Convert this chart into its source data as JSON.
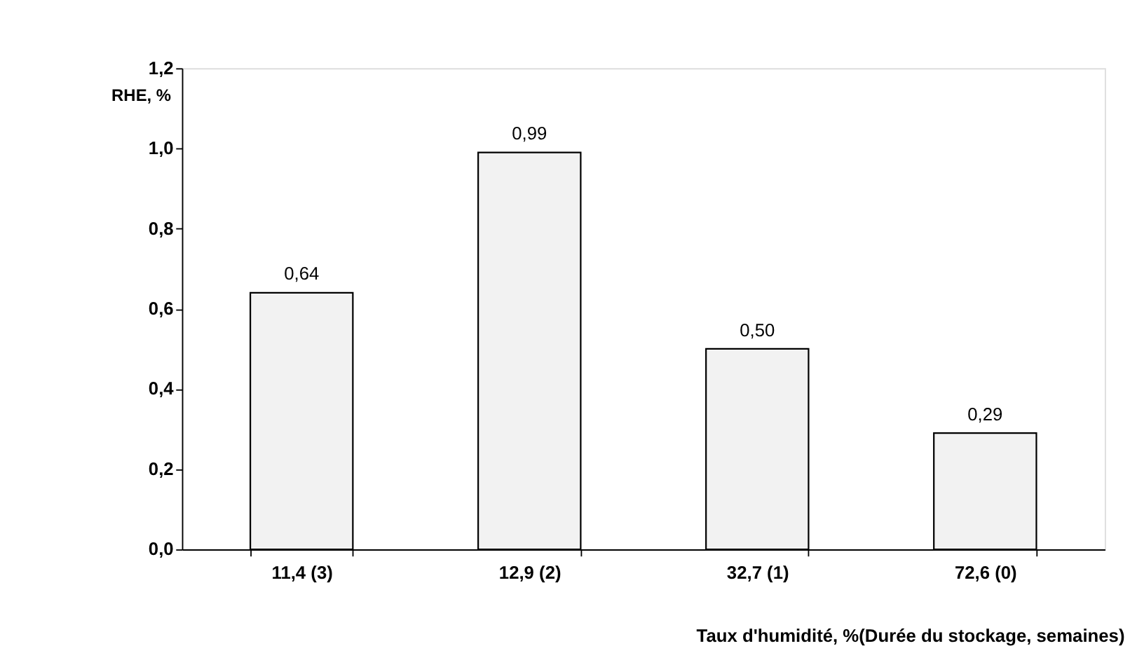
{
  "chart_data": {
    "type": "bar",
    "xlabel": "Taux d'humidité, %(Durée du stockage, semaines)",
    "ylabel": "RHE, %",
    "categories": [
      "11,4 (3)",
      "12,9 (2)",
      "32,7 (1)",
      "72,6 (0)"
    ],
    "values": [
      0.64,
      0.99,
      0.5,
      0.29
    ],
    "value_labels": [
      "0,64",
      "0,99",
      "0,50",
      "0,29"
    ],
    "color": "#f2f2f2",
    "ylim": [
      0,
      1.2
    ],
    "yticks": [
      {
        "value": 0,
        "label": "0,0"
      },
      {
        "value": 0.2,
        "label": "0,2"
      },
      {
        "value": 0.4,
        "label": "0,4"
      },
      {
        "value": 0.6,
        "label": "0,6"
      },
      {
        "value": 0.8,
        "label": "0,8"
      },
      {
        "value": 1.0,
        "label": "1,0"
      },
      {
        "value": 1.2,
        "label": "1,2"
      }
    ],
    "grid": false
  }
}
